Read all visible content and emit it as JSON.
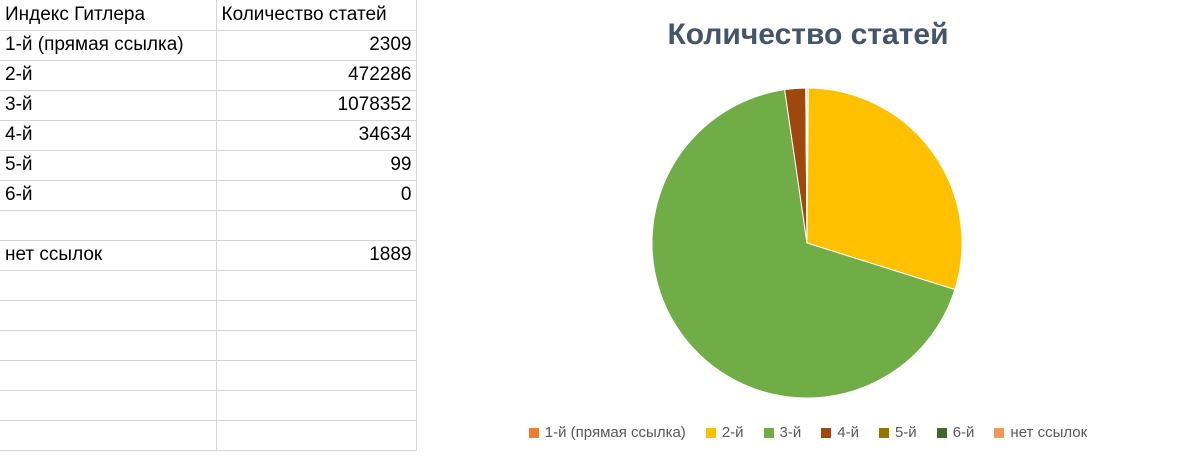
{
  "sheet": {
    "header": [
      "Индекс Гитлера",
      "Количество статей"
    ],
    "rows": [
      [
        "1-й (прямая ссылка)",
        "2309"
      ],
      [
        "2-й",
        "472286"
      ],
      [
        "3-й",
        "1078352"
      ],
      [
        "4-й",
        "34634"
      ],
      [
        "5-й",
        "99"
      ],
      [
        "6-й",
        "0"
      ],
      [
        "",
        ""
      ],
      [
        "нет ссылок",
        "1889"
      ],
      [
        "",
        ""
      ],
      [
        "",
        ""
      ],
      [
        "",
        ""
      ],
      [
        "",
        ""
      ],
      [
        "",
        ""
      ],
      [
        "",
        ""
      ]
    ]
  },
  "chart_data": {
    "type": "pie",
    "title": "Количество статей",
    "categories": [
      "1-й (прямая ссылка)",
      "2-й",
      "3-й",
      "4-й",
      "5-й",
      "6-й",
      "нет ссылок"
    ],
    "values": [
      2309,
      472286,
      1078352,
      34634,
      99,
      0,
      1889
    ],
    "colors": [
      "#ed7d31",
      "#ffc000",
      "#70ad47",
      "#9e480e",
      "#997300",
      "#43682b",
      "#f1975a",
      "#ffd932"
    ],
    "legend_entries": [
      "1-й (прямая ссылка)",
      "2-й",
      "3-й",
      "4-й",
      "5-й",
      "6-й",
      "нет ссылок"
    ],
    "legend_colors": [
      "#ed7d31",
      "#ffc000",
      "#70ad47",
      "#9e480e",
      "#997300",
      "#43682b",
      "#f1975a",
      "#ffd932"
    ],
    "legend_position": "bottom",
    "start_angle_deg": 90
  }
}
